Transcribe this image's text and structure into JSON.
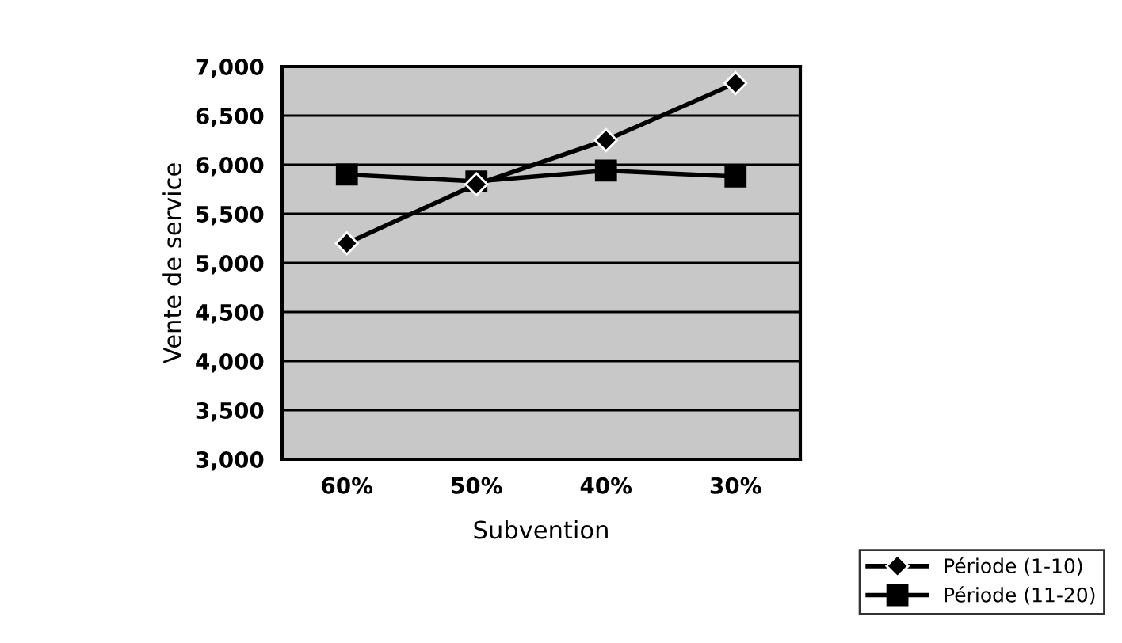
{
  "chart_data": {
    "type": "line",
    "xlabel": "Subvention",
    "ylabel": "Vente de service",
    "categories": [
      "60%",
      "50%",
      "40%",
      "30%"
    ],
    "series": [
      {
        "name": "Période (1-10)",
        "color": "#000000",
        "marker": "diamond",
        "values": [
          5200,
          5800,
          6250,
          6830
        ]
      },
      {
        "name": "Période (11-20)",
        "color": "#000000",
        "marker": "square",
        "values": [
          5900,
          5830,
          5940,
          5880
        ]
      }
    ],
    "ylim": [
      3000,
      7000
    ],
    "yticks": [
      {
        "value": 3000,
        "label": "3,000"
      },
      {
        "value": 3500,
        "label": "3,500"
      },
      {
        "value": 4000,
        "label": "4,000"
      },
      {
        "value": 4500,
        "label": "4,500"
      },
      {
        "value": 5000,
        "label": "5,000"
      },
      {
        "value": 5500,
        "label": "5,500"
      },
      {
        "value": 6000,
        "label": "6,000"
      },
      {
        "value": 6500,
        "label": "6,500"
      },
      {
        "value": 7000,
        "label": "7,000"
      }
    ],
    "grid": "y",
    "legend": "bottom right",
    "line_style": "solid"
  }
}
